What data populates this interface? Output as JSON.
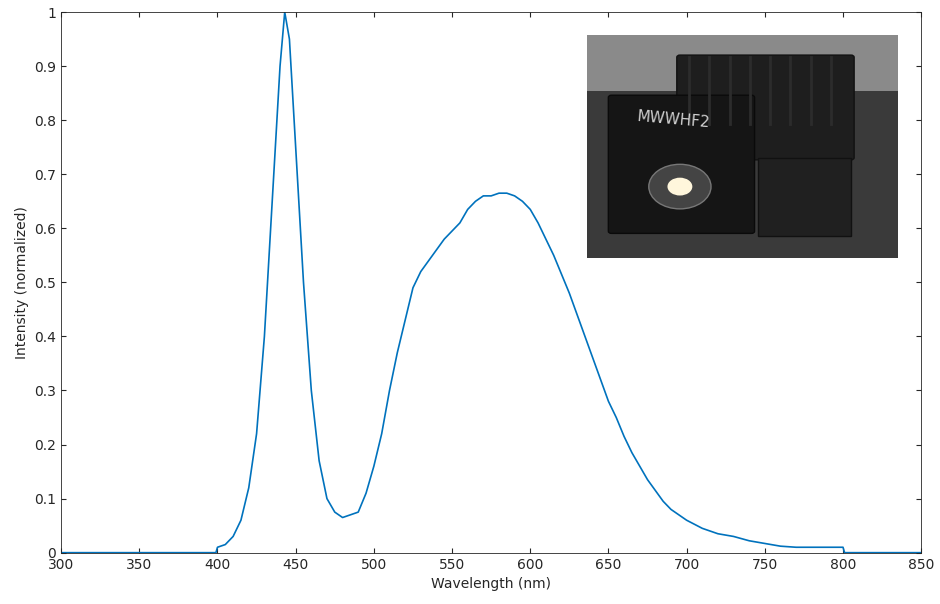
{
  "chart_data": {
    "type": "line",
    "x_label": "Wavelength (nm)",
    "y_label": "Intensity (normalized)",
    "annotation": "MWWHF2",
    "color": "#0072bd",
    "grid": false,
    "xlim": [
      300,
      850
    ],
    "ylim": [
      0,
      1
    ],
    "xticks": [
      300,
      350,
      400,
      450,
      500,
      550,
      600,
      650,
      700,
      750,
      800,
      850
    ],
    "yticks": [
      0,
      0.1,
      0.2,
      0.3,
      0.4,
      0.5,
      0.6,
      0.7,
      0.8,
      0.9,
      1
    ],
    "x": [
      300,
      350,
      399,
      400,
      405,
      410,
      415,
      420,
      425,
      430,
      435,
      440,
      443,
      446,
      450,
      455,
      460,
      465,
      470,
      475,
      480,
      485,
      490,
      495,
      500,
      505,
      510,
      515,
      520,
      525,
      530,
      535,
      540,
      545,
      550,
      555,
      560,
      565,
      570,
      575,
      580,
      585,
      590,
      595,
      600,
      605,
      610,
      615,
      620,
      625,
      630,
      635,
      640,
      645,
      650,
      655,
      660,
      665,
      670,
      675,
      680,
      685,
      690,
      695,
      700,
      710,
      720,
      730,
      740,
      750,
      760,
      770,
      780,
      790,
      800,
      801,
      850
    ],
    "values": [
      0,
      0,
      0,
      0.01,
      0.015,
      0.03,
      0.06,
      0.12,
      0.22,
      0.4,
      0.65,
      0.9,
      1.0,
      0.95,
      0.75,
      0.5,
      0.3,
      0.17,
      0.1,
      0.075,
      0.065,
      0.07,
      0.075,
      0.11,
      0.16,
      0.22,
      0.3,
      0.37,
      0.43,
      0.49,
      0.52,
      0.54,
      0.56,
      0.58,
      0.595,
      0.61,
      0.635,
      0.65,
      0.66,
      0.66,
      0.665,
      0.665,
      0.66,
      0.65,
      0.635,
      0.61,
      0.58,
      0.55,
      0.515,
      0.48,
      0.44,
      0.4,
      0.36,
      0.32,
      0.28,
      0.25,
      0.215,
      0.185,
      0.16,
      0.135,
      0.115,
      0.095,
      0.08,
      0.07,
      0.06,
      0.045,
      0.035,
      0.03,
      0.022,
      0.017,
      0.012,
      0.01,
      0.01,
      0.01,
      0.01,
      0,
      0
    ]
  }
}
